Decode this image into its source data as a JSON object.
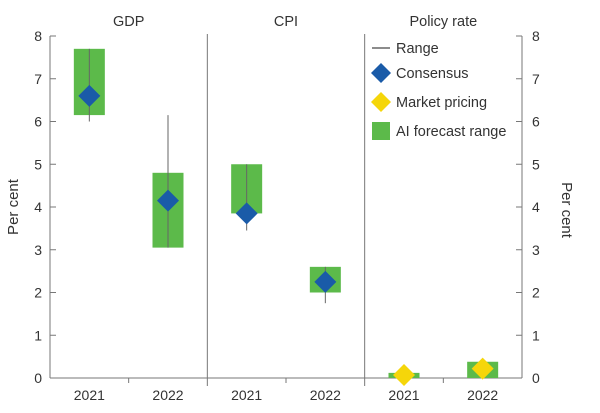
{
  "chart_data": {
    "type": "range-bar",
    "ylim": [
      0,
      8
    ],
    "y_ticks": [
      "0",
      "1",
      "2",
      "3",
      "4",
      "5",
      "6",
      "7",
      "8"
    ],
    "ylabel_left": "Per cent",
    "ylabel_right": "Per cent",
    "panels": [
      {
        "title": "GDP",
        "categories": [
          "2021",
          "2022"
        ],
        "range": [
          [
            6.0,
            7.7
          ],
          [
            3.05,
            6.15
          ]
        ],
        "consensus": [
          6.6,
          4.15
        ],
        "ai_forecast_range": [
          [
            6.15,
            7.7
          ],
          [
            3.05,
            4.8
          ]
        ],
        "market_pricing": [
          null,
          null
        ]
      },
      {
        "title": "CPI",
        "categories": [
          "2021",
          "2022"
        ],
        "range": [
          [
            3.45,
            5.0
          ],
          [
            1.75,
            2.6
          ]
        ],
        "consensus": [
          3.85,
          2.25
        ],
        "ai_forecast_range": [
          [
            3.85,
            5.0
          ],
          [
            2.0,
            2.6
          ]
        ],
        "market_pricing": [
          null,
          null
        ]
      },
      {
        "title": "Policy rate",
        "categories": [
          "2021",
          "2022"
        ],
        "range": [
          null,
          null
        ],
        "consensus": [
          null,
          null
        ],
        "ai_forecast_range": [
          [
            0.0,
            0.12
          ],
          [
            0.0,
            0.38
          ]
        ],
        "market_pricing": [
          0.07,
          0.22
        ]
      }
    ],
    "legend": [
      {
        "key": "range",
        "label": "Range",
        "color": "#666666"
      },
      {
        "key": "consensus",
        "label": "Consensus",
        "color": "#1a5ba8"
      },
      {
        "key": "market_pricing",
        "label": "Market pricing",
        "color": "#f5d60a"
      },
      {
        "key": "ai_forecast_range",
        "label": "AI forecast range",
        "color": "#5cba4a"
      }
    ],
    "legend_position": "top-right"
  }
}
